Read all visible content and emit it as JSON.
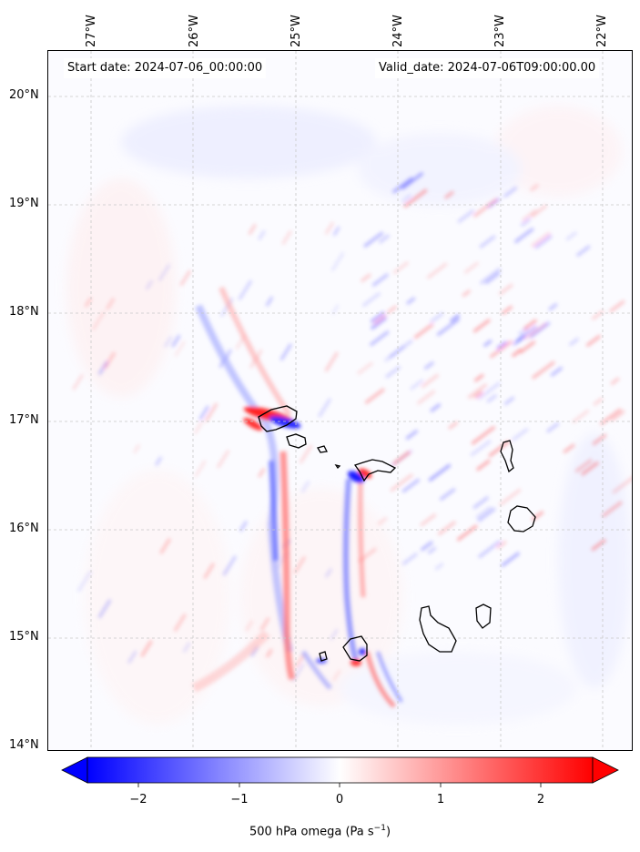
{
  "info": {
    "start_text": "Start date: 2024-07-06_00:00:00",
    "valid_text": "Valid_date: 2024-07-06T09:00:00.00"
  },
  "axes": {
    "lat_labels": [
      "20°N",
      "19°N",
      "18°N",
      "17°N",
      "16°N",
      "15°N",
      "14°N"
    ],
    "lon_labels": [
      "27°W",
      "26°W",
      "25°W",
      "24°W",
      "23°W",
      "22°W"
    ],
    "gridlines": true
  },
  "colorbar": {
    "ticks": [
      "−2",
      "−1",
      "0",
      "1",
      "2"
    ],
    "range": [
      -2.6,
      2.6
    ],
    "extend": "both",
    "colormap": "bwr",
    "label_main": "500 hPa omega (Pa s",
    "label_sup": "−1",
    "label_end": ")"
  },
  "colors": {
    "negative": "#0000ff",
    "neutral": "#ffffff",
    "positive": "#ff0000",
    "coastline": "#000000",
    "grid": "#c8c8c8"
  }
}
